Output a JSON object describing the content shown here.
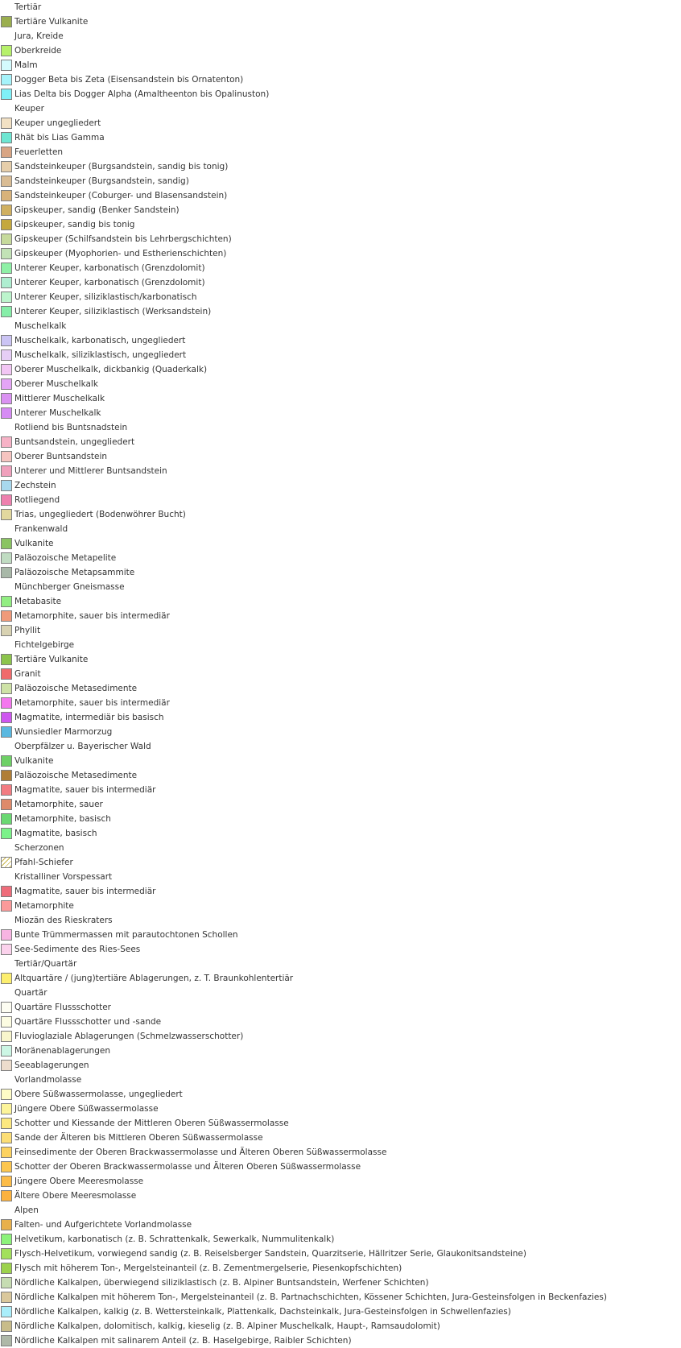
{
  "legend": [
    {
      "type": "heading",
      "label": "Tertiär"
    },
    {
      "type": "item",
      "label": "Tertiäre Vulkanite",
      "color": "#9aae4e"
    },
    {
      "type": "heading",
      "label": "Jura, Kreide"
    },
    {
      "type": "item",
      "label": "Oberkreide",
      "color": "#b6f06a"
    },
    {
      "type": "item",
      "label": "Malm",
      "color": "#d4fbfd"
    },
    {
      "type": "item",
      "label": "Dogger Beta bis Zeta (Eisensandstein bis Ornatenton)",
      "color": "#a6f3fa"
    },
    {
      "type": "item",
      "label": "Lias Delta bis Dogger Alpha (Amaltheenton bis Opalinuston)",
      "color": "#7ff0f7"
    },
    {
      "type": "heading",
      "label": "Keuper"
    },
    {
      "type": "item",
      "label": "Keuper ungegliedert",
      "color": "#f2e1c4"
    },
    {
      "type": "item",
      "label": "Rhät bis Lias Gamma",
      "color": "#6ee6d2"
    },
    {
      "type": "item",
      "label": "Feuerletten",
      "color": "#d8a584"
    },
    {
      "type": "item",
      "label": "Sandsteinkeuper (Burgsandstein, sandig bis tonig)",
      "color": "#e6ceaa"
    },
    {
      "type": "item",
      "label": "Sandsteinkeuper (Burgsandstein, sandig)",
      "color": "#d9bc94"
    },
    {
      "type": "item",
      "label": "Sandsteinkeuper (Coburger- und Blasensandstein)",
      "color": "#d8b27a"
    },
    {
      "type": "item",
      "label": "Gipskeuper, sandig (Benker Sandstein)",
      "color": "#d0b060"
    },
    {
      "type": "item",
      "label": "Gipskeuper, sandig bis tonig",
      "color": "#c4a83e"
    },
    {
      "type": "item",
      "label": "Gipskeuper (Schilfsandstein bis Lehrbergschichten)",
      "color": "#c6da9c"
    },
    {
      "type": "item",
      "label": "Gipskeuper (Myophorien- und Estherienschichten)",
      "color": "#c2e2b6"
    },
    {
      "type": "item",
      "label": "Unterer Keuper, karbonatisch (Grenzdolomit)",
      "color": "#8ef0a6"
    },
    {
      "type": "item",
      "label": "Unterer Keuper, karbonatisch (Grenzdolomit)",
      "color": "#aeeed0"
    },
    {
      "type": "item",
      "label": "Unterer Keuper, siliziklastisch/karbonatisch",
      "color": "#bcf4cc"
    },
    {
      "type": "item",
      "label": "Unterer Keuper, siliziklastisch (Werksandstein)",
      "color": "#86eea8"
    },
    {
      "type": "heading",
      "label": "Muschelkalk"
    },
    {
      "type": "item",
      "label": "Muschelkalk, karbonatisch, ungegliedert",
      "color": "#cbc4f4"
    },
    {
      "type": "item",
      "label": "Muschelkalk, siliziklastisch, ungegliedert",
      "color": "#e6cef6"
    },
    {
      "type": "item",
      "label": "Oberer Muschelkalk, dickbankig (Quaderkalk)",
      "color": "#f2c6f4"
    },
    {
      "type": "item",
      "label": "Oberer Muschelkalk",
      "color": "#e4a4f6"
    },
    {
      "type": "item",
      "label": "Mittlerer Muschelkalk",
      "color": "#da92f2"
    },
    {
      "type": "item",
      "label": "Unterer Muschelkalk",
      "color": "#d68cf4"
    },
    {
      "type": "heading",
      "label": "Rotliend bis Buntsnadstein"
    },
    {
      "type": "item",
      "label": "Buntsandstein, ungegliedert",
      "color": "#f6b2c6"
    },
    {
      "type": "item",
      "label": "Oberer Buntsandstein",
      "color": "#f6c4c0"
    },
    {
      "type": "item",
      "label": "Unterer und Mittlerer Buntsandstein",
      "color": "#f0a0bc"
    },
    {
      "type": "item",
      "label": "Zechstein",
      "color": "#a8d8ee"
    },
    {
      "type": "item",
      "label": "Rotliegend",
      "color": "#ee80ae"
    },
    {
      "type": "item",
      "label": "Trias, ungegliedert (Bodenwöhrer Bucht)",
      "color": "#e2d89e"
    },
    {
      "type": "heading",
      "label": "Frankenwald"
    },
    {
      "type": "item",
      "label": "Vulkanite",
      "color": "#8ac462"
    },
    {
      "type": "item",
      "label": "Paläozoische Metapelite",
      "color": "#c0dcc2"
    },
    {
      "type": "item",
      "label": "Paläozoische Metapsammite",
      "color": "#a8b8a8"
    },
    {
      "type": "heading",
      "label": "Münchberger Gneismasse"
    },
    {
      "type": "item",
      "label": "Metabasite",
      "color": "#92ee82"
    },
    {
      "type": "item",
      "label": "Metamorphite, sauer bis intermediär",
      "color": "#f09a7a"
    },
    {
      "type": "item",
      "label": "Phyllit",
      "color": "#d8d2b2"
    },
    {
      "type": "heading",
      "label": "Fichtelgebirge"
    },
    {
      "type": "item",
      "label": "Tertiäre Vulkanite",
      "color": "#8cc44c"
    },
    {
      "type": "item",
      "label": "Granit",
      "color": "#f06a6c"
    },
    {
      "type": "item",
      "label": "Paläozoische Metasedimente",
      "color": "#cee2a6"
    },
    {
      "type": "item",
      "label": "Metamorphite, sauer bis intermediär",
      "color": "#f478ee"
    },
    {
      "type": "item",
      "label": "Magmatite, intermediär bis basisch",
      "color": "#ce56f0"
    },
    {
      "type": "item",
      "label": "Wunsiedler Marmorzug",
      "color": "#5ab8e0"
    },
    {
      "type": "heading",
      "label": "Oberpfälzer u. Bayerischer Wald"
    },
    {
      "type": "item",
      "label": "Vulkanite",
      "color": "#6ed066"
    },
    {
      "type": "item",
      "label": "Paläozoische Metasedimente",
      "color": "#b07e36"
    },
    {
      "type": "item",
      "label": "Magmatite, sauer bis intermediär",
      "color": "#f27c82"
    },
    {
      "type": "item",
      "label": "Metamorphite, sauer",
      "color": "#de8a6a"
    },
    {
      "type": "item",
      "label": "Metamorphite, basisch",
      "color": "#6ad872"
    },
    {
      "type": "item",
      "label": "Magmatite, basisch",
      "color": "#7cf28a"
    },
    {
      "type": "heading",
      "label": "Scherzonen"
    },
    {
      "type": "item",
      "label": "Pfahl-Schiefer",
      "color": "#ffffff",
      "pattern": "hatch"
    },
    {
      "type": "heading",
      "label": "Kristalliner Vorspessart"
    },
    {
      "type": "item",
      "label": "Magmatite, sauer bis intermediär",
      "color": "#ee6c7a"
    },
    {
      "type": "item",
      "label": "Metamorphite",
      "color": "#fa9a9a"
    },
    {
      "type": "heading",
      "label": "Miozän des Rieskraters"
    },
    {
      "type": "item",
      "label": "Bunte Trümmermassen mit parautochtonen Schollen",
      "color": "#f7b4e2"
    },
    {
      "type": "item",
      "label": "See-Sedimente des Ries-Sees",
      "color": "#fbd2ec"
    },
    {
      "type": "heading",
      "label": "Tertiär/Quartär"
    },
    {
      "type": "item",
      "label": "Altquartäre / (jung)tertiäre Ablagerungen, z. T. Braunkohlentertiär",
      "color": "#fcee6e"
    },
    {
      "type": "heading",
      "label": "Quartär"
    },
    {
      "type": "item",
      "label": "Quartäre Flussschotter",
      "color": "#fdfdf2"
    },
    {
      "type": "item",
      "label": "Quartäre Flussschotter und -sande",
      "color": "#fcfce2"
    },
    {
      "type": "item",
      "label": "Fluvioglaziale Ablagerungen (Schmelzwasserschotter)",
      "color": "#f8f6cc"
    },
    {
      "type": "item",
      "label": "Moränenablagerungen",
      "color": "#ccf6e4"
    },
    {
      "type": "item",
      "label": "Seeablagerungen",
      "color": "#ecdccc"
    },
    {
      "type": "heading",
      "label": "Vorlandmolasse"
    },
    {
      "type": "item",
      "label": "Obere Süßwassermolasse, ungegliedert",
      "color": "#fefcc6"
    },
    {
      "type": "item",
      "label": "Jüngere Obere Süßwassermolasse",
      "color": "#fcf49a"
    },
    {
      "type": "item",
      "label": "Schotter und Kiessande der Mittleren Oberen Süßwassermolasse",
      "color": "#fce880"
    },
    {
      "type": "item",
      "label": "Sande der Älteren bis Mittleren Oberen Süßwassermolasse",
      "color": "#fcde76"
    },
    {
      "type": "item",
      "label": "Feinsedimente der Oberen Brackwassermolasse und Älteren Oberen Süßwassermolasse",
      "color": "#fcd260"
    },
    {
      "type": "item",
      "label": "Schotter der Oberen Brackwassermolasse und Älteren Oberen Süßwassermolasse",
      "color": "#fcc64e"
    },
    {
      "type": "item",
      "label": "Jüngere Obere Meeresmolasse",
      "color": "#fcbc48"
    },
    {
      "type": "item",
      "label": "Ältere Obere Meeresmolasse",
      "color": "#fcb23e"
    },
    {
      "type": "heading",
      "label": "Alpen"
    },
    {
      "type": "item",
      "label": "Falten- und Aufgerichtete Vorlandmolasse",
      "color": "#e8b04c"
    },
    {
      "type": "item",
      "label": "Helvetikum, karbonatisch (z. B. Schrattenkalk, Sewerkalk, Nummulitenkalk)",
      "color": "#8cf27a"
    },
    {
      "type": "item",
      "label": "Flysch-Helvetikum, vorwiegend sandig (z. B. Reiselsberger Sandstein, Quarzitserie, Hällritzer Serie, Glaukonitsandsteine)",
      "color": "#a2e05c"
    },
    {
      "type": "item",
      "label": "Flysch mit höherem Ton-, Mergelsteinanteil (z. B. Zementmergelserie, Piesenkopfschichten)",
      "color": "#9cd24c"
    },
    {
      "type": "item",
      "label": "Nördliche Kalkalpen, überwiegend siliziklastisch (z. B. Alpiner Buntsandstein, Werfener Schichten)",
      "color": "#c6dcb2"
    },
    {
      "type": "item",
      "label": "Nördliche Kalkalpen mit höherem Ton-, Mergelsteinanteil (z. B. Partnachschichten, Kössener Schichten, Jura-Gesteinsfolgen in Beckenfazies)",
      "color": "#dac89c"
    },
    {
      "type": "item",
      "label": "Nördliche Kalkalpen, kalkig (z. B. Wettersteinkalk, Plattenkalk, Dachsteinkalk, Jura-Gesteinsfolgen in Schwellenfazies)",
      "color": "#aaeefa"
    },
    {
      "type": "item",
      "label": "Nördliche Kalkalpen, dolomitisch, kalkig, kieselig (z. B. Alpiner Muschelkalk, Haupt-, Ramsaudolomit)",
      "color": "#c8bc8a"
    },
    {
      "type": "item",
      "label": "Nördliche Kalkalpen mit salinarem Anteil (z. B. Haselgebirge, Raibler Schichten)",
      "color": "#aeb8a8"
    }
  ]
}
